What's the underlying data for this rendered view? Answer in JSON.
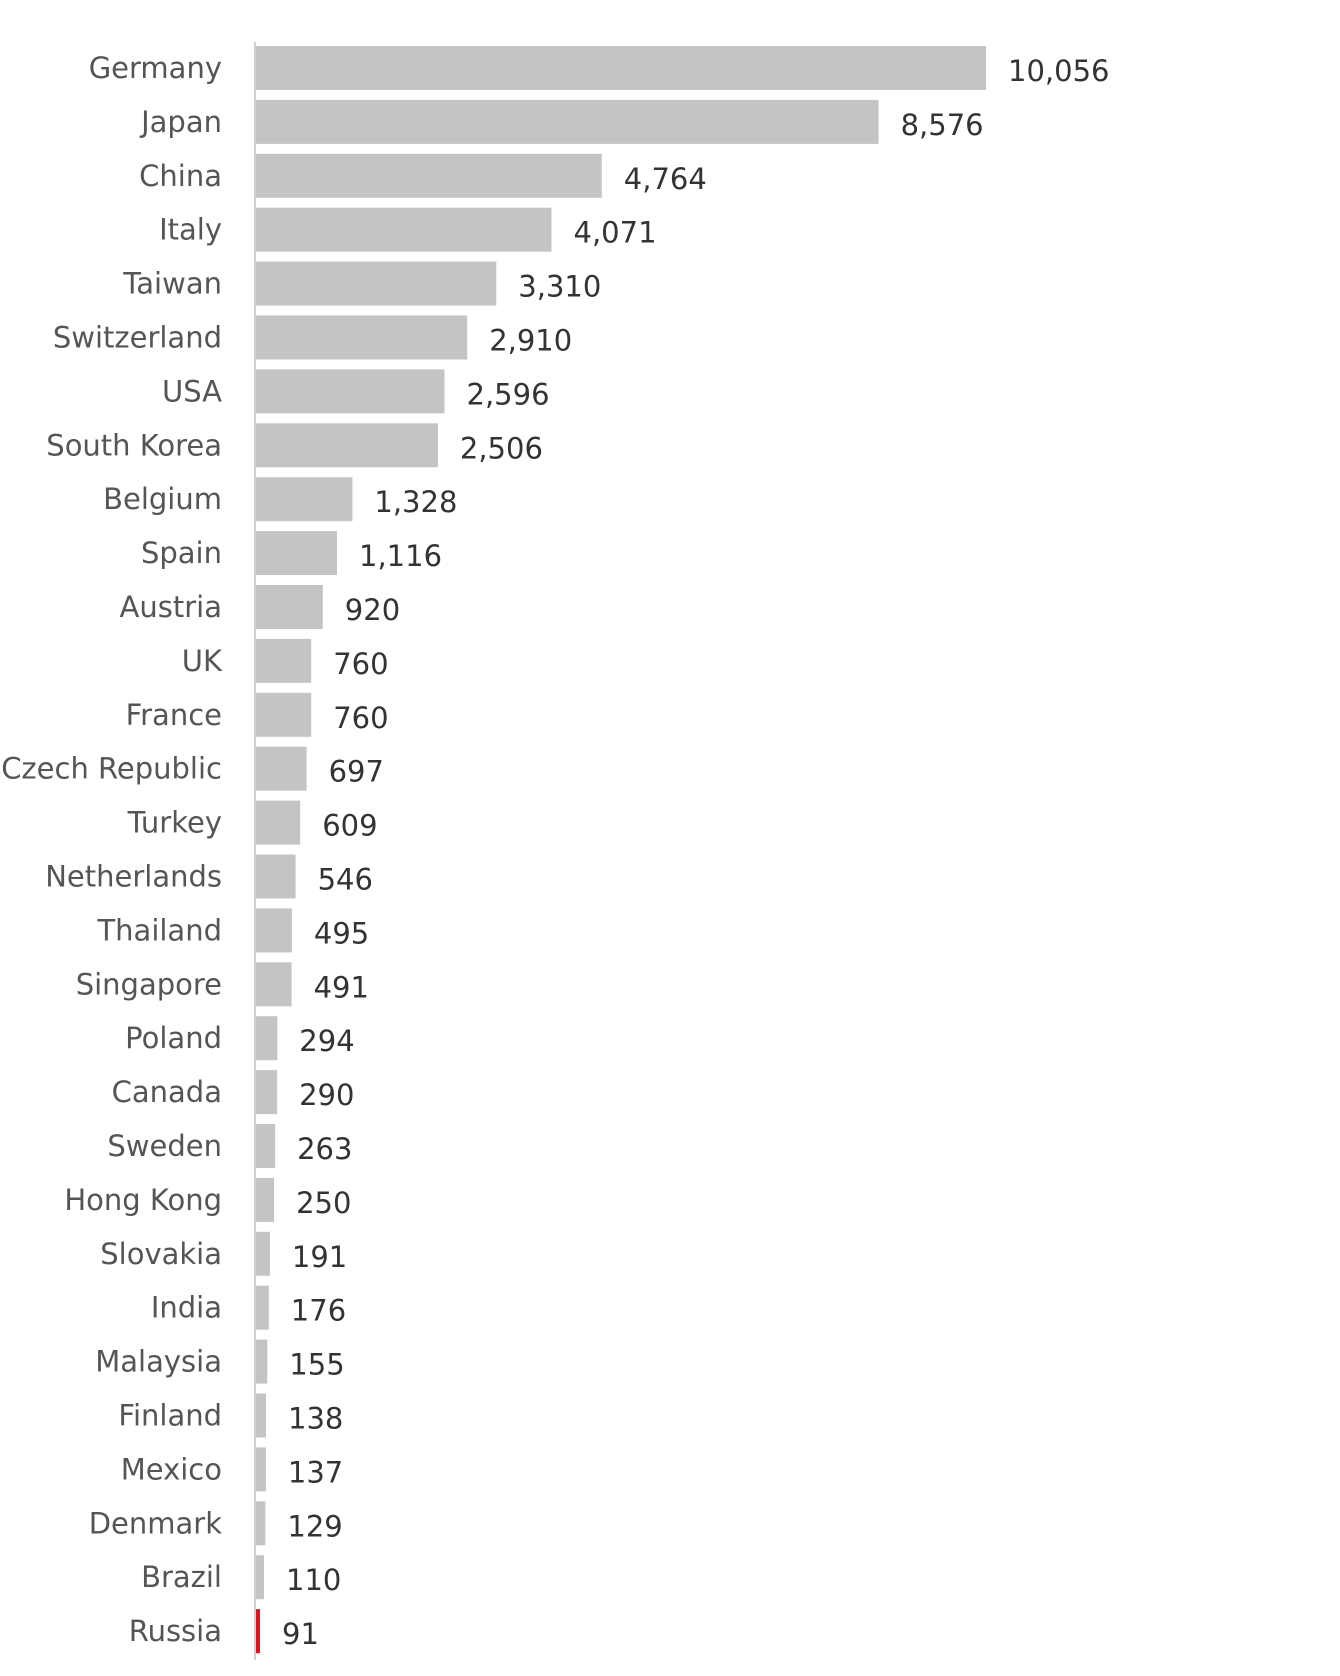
{
  "chart_data": {
    "type": "bar",
    "orientation": "horizontal",
    "categories": [
      "Germany",
      "Japan",
      "China",
      "Italy",
      "Taiwan",
      "Switzerland",
      "USA",
      "South Korea",
      "Belgium",
      "Spain",
      "Austria",
      "UK",
      "France",
      "Czech Republic",
      "Turkey",
      "Netherlands",
      "Thailand",
      "Singapore",
      "Poland",
      "Canada",
      "Sweden",
      "Hong Kong",
      "Slovakia",
      "India",
      "Malaysia",
      "Finland",
      "Mexico",
      "Denmark",
      "Brazil",
      "Russia"
    ],
    "values": [
      10056,
      8576,
      4764,
      4071,
      3310,
      2910,
      2596,
      2506,
      1328,
      1116,
      920,
      760,
      760,
      697,
      609,
      546,
      495,
      491,
      294,
      290,
      263,
      250,
      191,
      176,
      155,
      138,
      137,
      129,
      110,
      91
    ],
    "value_labels": [
      "10,056",
      "8,576",
      "4,764",
      "4,071",
      "3,310",
      "2,910",
      "2,596",
      "2,506",
      "1,328",
      "1,116",
      "920",
      "760",
      "760",
      "697",
      "609",
      "546",
      "495",
      "491",
      "294",
      "290",
      "263",
      "250",
      "191",
      "176",
      "155",
      "138",
      "137",
      "129",
      "110",
      "91"
    ],
    "title": "",
    "xlabel": "",
    "ylabel": "",
    "xlim": [
      0,
      10056
    ],
    "grid": false,
    "legend": "none",
    "colors": {
      "bar": "#c4c4c4",
      "highlight": "#e0141e",
      "axis": "#d0d0d0"
    },
    "highlight_category": "Russia"
  }
}
